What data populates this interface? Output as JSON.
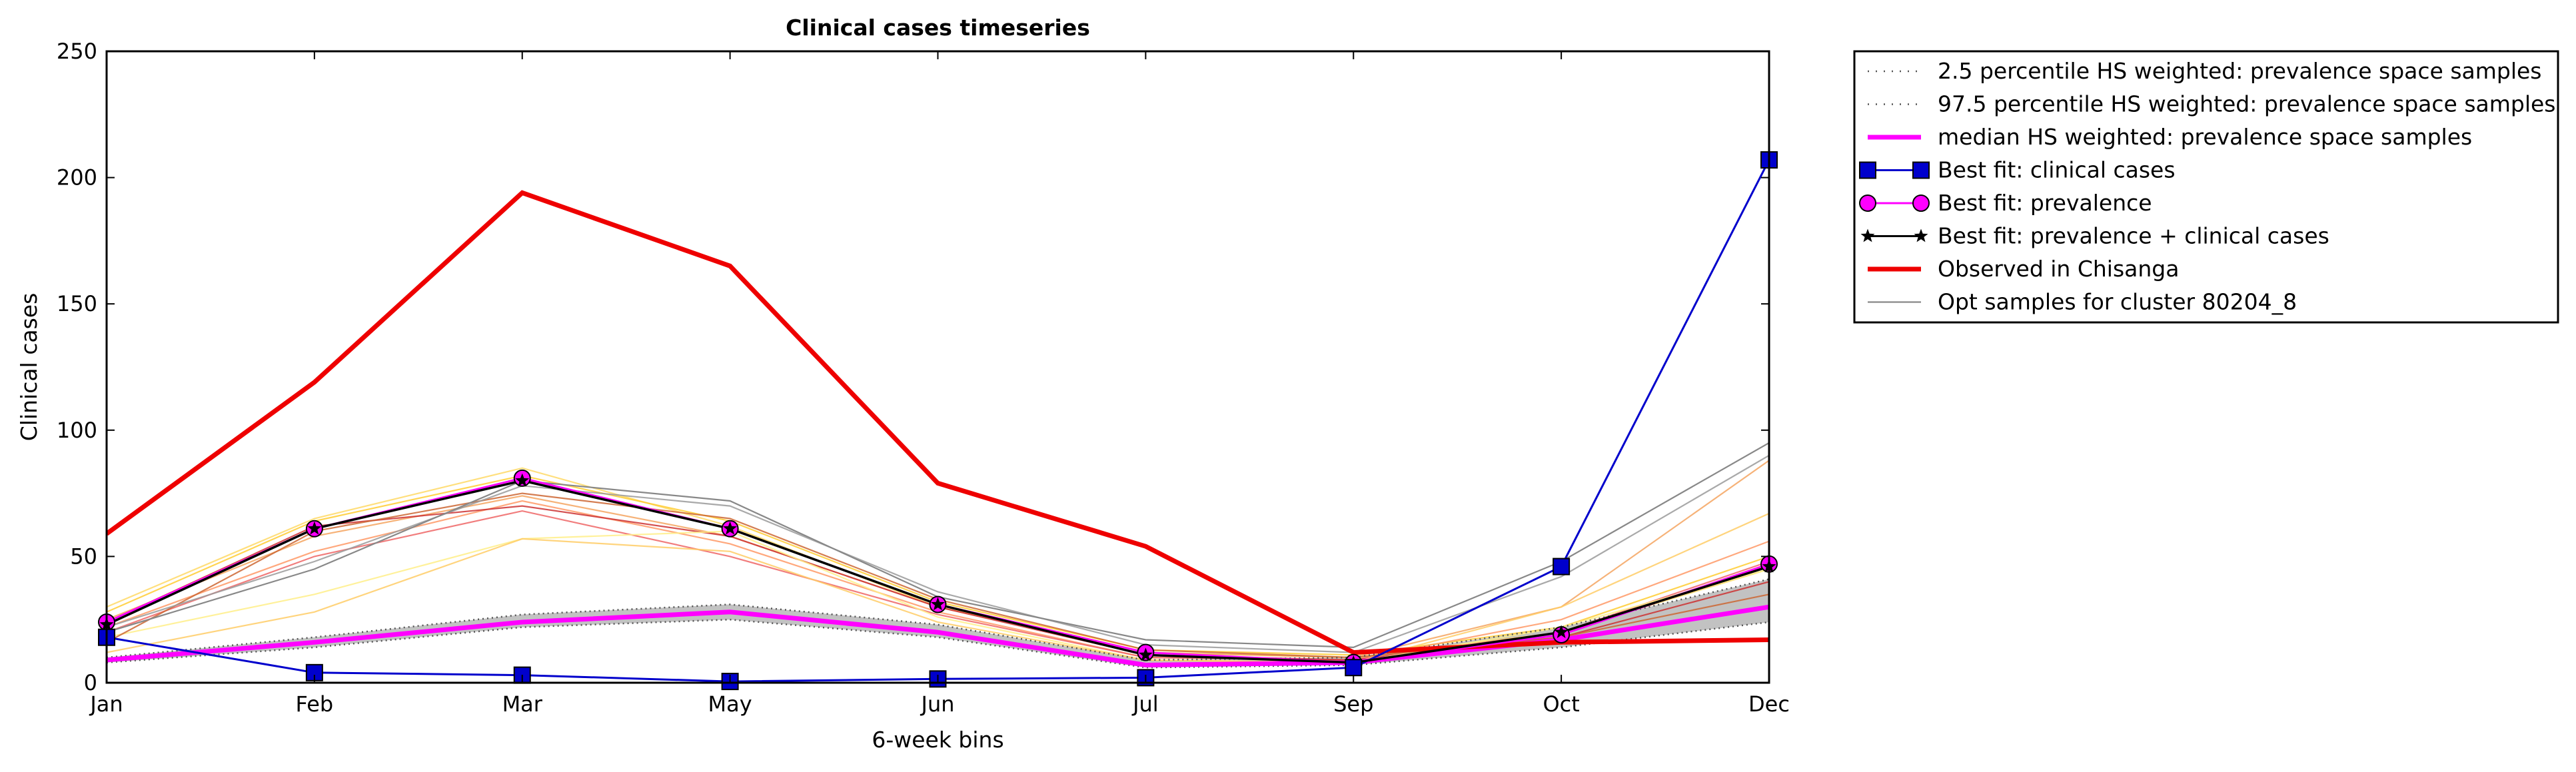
{
  "chart_data": {
    "type": "line",
    "title": "Clinical cases timeseries",
    "xlabel": "6-week bins",
    "ylabel": "Clinical cases",
    "categories": [
      "Jan",
      "Feb",
      "Mar",
      "May",
      "Jun",
      "Jul",
      "Sep",
      "Oct",
      "Dec"
    ],
    "ylim": [
      0,
      250
    ],
    "yticks": [
      0,
      50,
      100,
      150,
      200,
      250
    ],
    "grid": false,
    "legend_position": "outside-top-right",
    "band": {
      "name": "HS weighted prevalence space samples band",
      "lower": [
        8,
        14,
        22,
        25,
        18,
        6,
        7,
        14,
        24
      ],
      "upper": [
        10,
        18,
        27,
        31,
        23,
        9,
        10,
        22,
        41
      ],
      "color": "#9a9a9a"
    },
    "series": [
      {
        "name": "2.5 percentile HS weighted: prevalence space samples",
        "style": "dotted",
        "color": "#555555",
        "values": [
          8,
          14,
          22,
          25,
          18,
          6,
          7,
          14,
          24
        ]
      },
      {
        "name": "97.5 percentile HS weighted: prevalence space samples",
        "style": "dotted",
        "color": "#555555",
        "values": [
          10,
          18,
          27,
          31,
          23,
          9,
          10,
          22,
          41
        ]
      },
      {
        "name": "median HS weighted: prevalence space samples",
        "style": "solid",
        "color": "#ff00ff",
        "values": [
          9,
          16,
          24,
          28,
          20,
          7,
          8,
          17,
          30
        ]
      },
      {
        "name": "Best fit: clinical cases",
        "style": "marker-square",
        "color": "#0000cc",
        "values": [
          18,
          4,
          3,
          0.5,
          1.5,
          2,
          6,
          46,
          207
        ]
      },
      {
        "name": "Best fit: prevalence",
        "style": "marker-circle",
        "color": "#ff00ff",
        "values": [
          24,
          61,
          81,
          61,
          31,
          12,
          8,
          19,
          47
        ]
      },
      {
        "name": "Best fit: prevalence + clinical cases",
        "style": "marker-star",
        "color": "#000000",
        "values": [
          23,
          61,
          80,
          61,
          31,
          11,
          8,
          20,
          46
        ]
      },
      {
        "name": "Observed in Chisanga",
        "style": "thick",
        "color": "#ee0000",
        "values": [
          59,
          119,
          194,
          165,
          79,
          54,
          12,
          16,
          17
        ]
      },
      {
        "name": "Opt samples for cluster 80204_8",
        "style": "thin",
        "color": "#888888",
        "values": [
          20,
          45,
          80,
          72,
          34,
          17,
          14,
          48,
          95
        ]
      }
    ],
    "sample_lines": [
      {
        "color": "#ffd966",
        "values": [
          30,
          65,
          85,
          62,
          30,
          12,
          10,
          20,
          45
        ]
      },
      {
        "color": "#ffcc33",
        "values": [
          28,
          64,
          82,
          64,
          32,
          13,
          11,
          22,
          50
        ]
      },
      {
        "color": "#f4a460",
        "values": [
          25,
          58,
          74,
          58,
          30,
          12,
          10,
          30,
          88
        ]
      },
      {
        "color": "#ff9966",
        "values": [
          22,
          52,
          72,
          55,
          28,
          10,
          9,
          25,
          56
        ]
      },
      {
        "color": "#ee6666",
        "values": [
          20,
          50,
          68,
          50,
          27,
          10,
          9,
          20,
          48
        ]
      },
      {
        "color": "#cc3333",
        "values": [
          24,
          62,
          70,
          58,
          30,
          11,
          9,
          18,
          40
        ]
      },
      {
        "color": "#ffee88",
        "values": [
          18,
          35,
          57,
          60,
          26,
          9,
          8,
          22,
          45
        ]
      },
      {
        "color": "#ffcc66",
        "values": [
          12,
          28,
          57,
          52,
          24,
          9,
          8,
          30,
          67
        ]
      },
      {
        "color": "#cc6633",
        "values": [
          16,
          60,
          75,
          65,
          33,
          13,
          10,
          18,
          35
        ]
      },
      {
        "color": "#9a9a9a",
        "values": [
          22,
          48,
          78,
          70,
          36,
          15,
          12,
          42,
          90
        ]
      }
    ]
  }
}
